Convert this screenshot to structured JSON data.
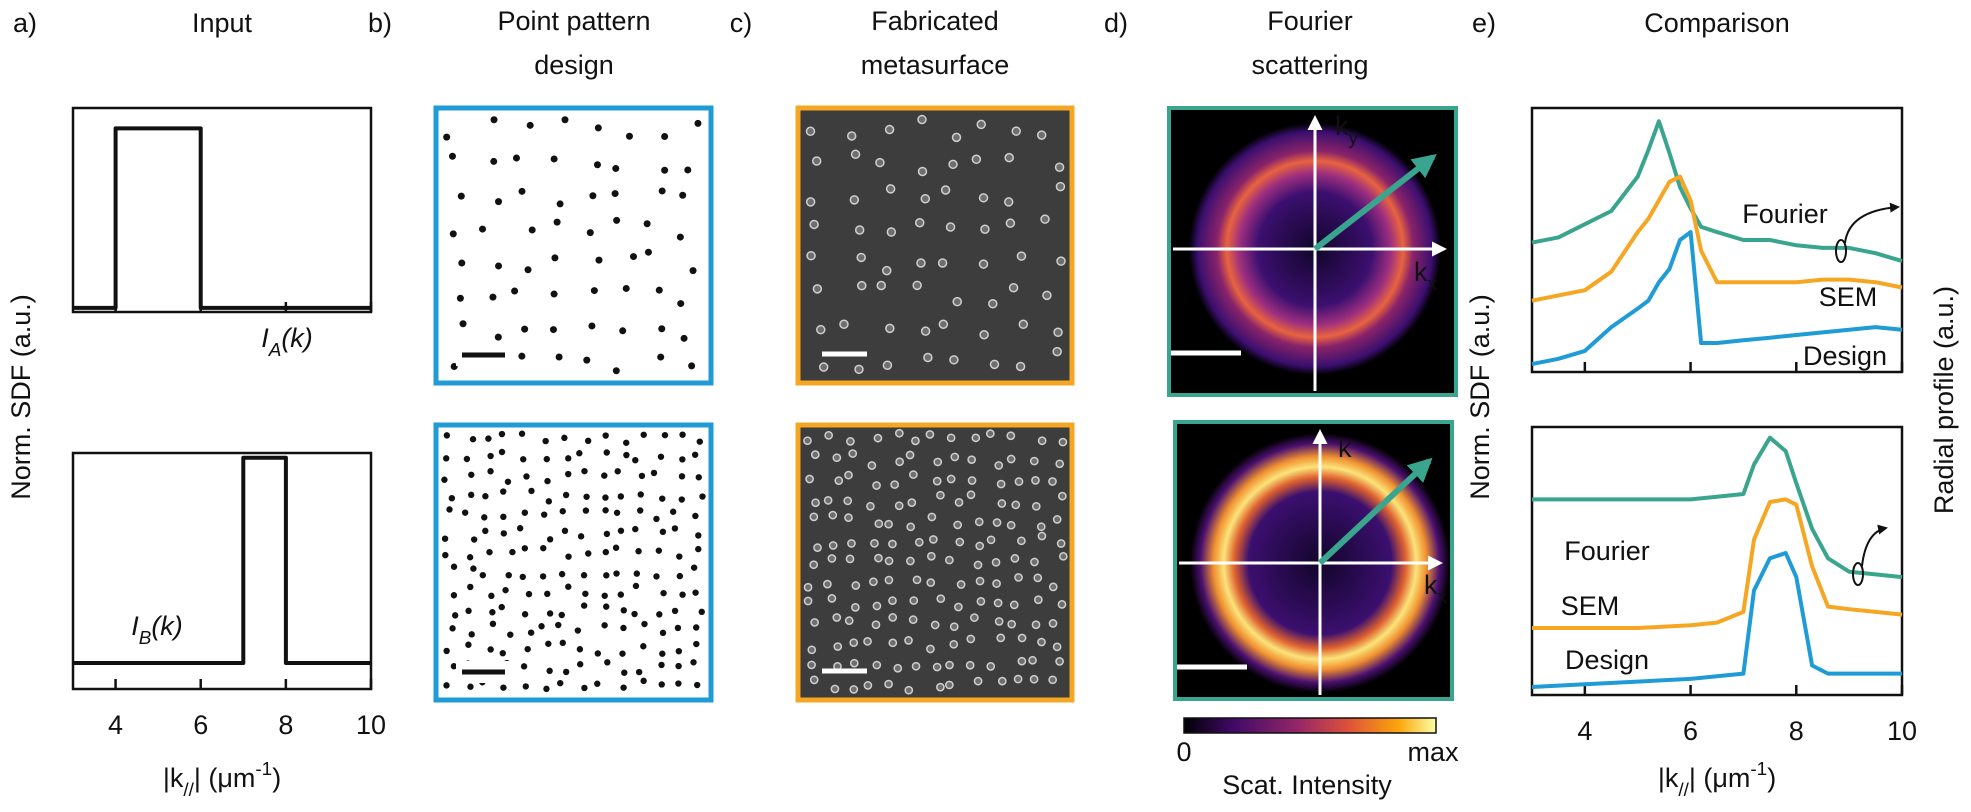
{
  "chart_data": [
    {
      "type": "line",
      "panel_label": "a)",
      "title": "Input",
      "ylabel": "Norm. SDF (a.u.)",
      "xlim": [
        3,
        10
      ],
      "ylim": [
        0,
        1
      ],
      "xticks": [
        4,
        6,
        8,
        10
      ],
      "xtick_labels": false,
      "x": [
        3,
        4,
        4,
        6,
        6,
        10
      ],
      "series": [
        {
          "color": "#111111",
          "values": [
            0.02,
            0.02,
            0.9,
            0.9,
            0.02,
            0.02
          ]
        }
      ],
      "annotation": [
        "I",
        "A",
        "(k)"
      ]
    },
    {
      "type": "line",
      "xlabel": [
        "|k",
        "//",
        "| (μm",
        "-1",
        ")"
      ],
      "xlim": [
        3,
        10
      ],
      "ylim": [
        0,
        1
      ],
      "xticks": [
        4,
        6,
        8,
        10
      ],
      "xtick_labels": true,
      "x": [
        3,
        7,
        7,
        8,
        8,
        10
      ],
      "series": [
        {
          "color": "#111111",
          "values": [
            0.11,
            0.11,
            0.98,
            0.98,
            0.11,
            0.11
          ]
        }
      ],
      "annotation": [
        "I",
        "B",
        "(k)"
      ]
    },
    {
      "type": "line",
      "panel_label": "e)",
      "title": "Comparison",
      "ylabel": "Norm. SDF (a.u.)",
      "y2label": "Radial profile (a.u.)",
      "xlim": [
        3,
        10
      ],
      "ylim": [
        0,
        1
      ],
      "xticks": [
        4,
        6,
        8,
        10
      ],
      "xtick_labels": false,
      "x": [
        3,
        3.5,
        4,
        4.5,
        5,
        5.2,
        5.4,
        5.6,
        5.8,
        6,
        6.2,
        6.5,
        7,
        7.5,
        8,
        8.5,
        9,
        9.5,
        10
      ],
      "series": [
        {
          "name": "Fourier",
          "color": "#3aa58f",
          "values": [
            0.49,
            0.51,
            0.56,
            0.61,
            0.74,
            0.84,
            0.95,
            0.83,
            0.7,
            0.62,
            0.55,
            0.53,
            0.5,
            0.5,
            0.48,
            0.47,
            0.47,
            0.45,
            0.42
          ]
        },
        {
          "name": "SEM",
          "color": "#f5a623",
          "values": [
            0.27,
            0.29,
            0.31,
            0.38,
            0.53,
            0.58,
            0.65,
            0.72,
            0.74,
            0.65,
            0.46,
            0.34,
            0.34,
            0.34,
            0.34,
            0.35,
            0.35,
            0.34,
            0.32
          ]
        },
        {
          "name": "Design",
          "color": "#1f9bd6",
          "values": [
            0.03,
            0.05,
            0.08,
            0.17,
            0.24,
            0.27,
            0.34,
            0.39,
            0.5,
            0.53,
            0.11,
            0.11,
            0.12,
            0.13,
            0.14,
            0.15,
            0.16,
            0.17,
            0.16
          ]
        }
      ]
    },
    {
      "type": "line",
      "xlabel": [
        "|k",
        "//",
        "| (μm",
        "-1",
        ")"
      ],
      "xlim": [
        3,
        10
      ],
      "ylim": [
        0,
        1
      ],
      "xticks": [
        4,
        6,
        8,
        10
      ],
      "xtick_labels": true,
      "x": [
        3,
        4,
        5,
        6,
        6.5,
        7,
        7.2,
        7.5,
        7.8,
        8,
        8.3,
        8.6,
        9,
        9.5,
        10
      ],
      "series": [
        {
          "name": "Fourier",
          "color": "#3aa58f",
          "values": [
            0.73,
            0.73,
            0.73,
            0.73,
            0.74,
            0.75,
            0.86,
            0.96,
            0.91,
            0.79,
            0.62,
            0.51,
            0.46,
            0.45,
            0.44
          ]
        },
        {
          "name": "SEM",
          "color": "#f5a623",
          "values": [
            0.25,
            0.25,
            0.25,
            0.26,
            0.27,
            0.31,
            0.58,
            0.72,
            0.73,
            0.71,
            0.48,
            0.33,
            0.32,
            0.31,
            0.3
          ]
        },
        {
          "name": "Design",
          "color": "#1f9bd6",
          "values": [
            0.03,
            0.04,
            0.05,
            0.06,
            0.07,
            0.08,
            0.39,
            0.51,
            0.53,
            0.44,
            0.11,
            0.08,
            0.08,
            0.08,
            0.08
          ]
        }
      ]
    }
  ],
  "panels": [
    {
      "label": "b)",
      "title": [
        "Point pattern",
        "design"
      ],
      "color": "#1f9bd6"
    },
    {
      "label": "c)",
      "title": [
        "Fabricated",
        "metasurface"
      ],
      "color": "#f5a623"
    },
    {
      "label": "d)",
      "title": [
        "Fourier",
        "scattering"
      ],
      "color": "#3aa58f",
      "axis_labels": [
        [
          "k",
          "y"
        ],
        [
          "k",
          "x"
        ]
      ],
      "colorbar": {
        "min": "0",
        "max": "max",
        "label": "Scat. Intensity"
      }
    }
  ]
}
